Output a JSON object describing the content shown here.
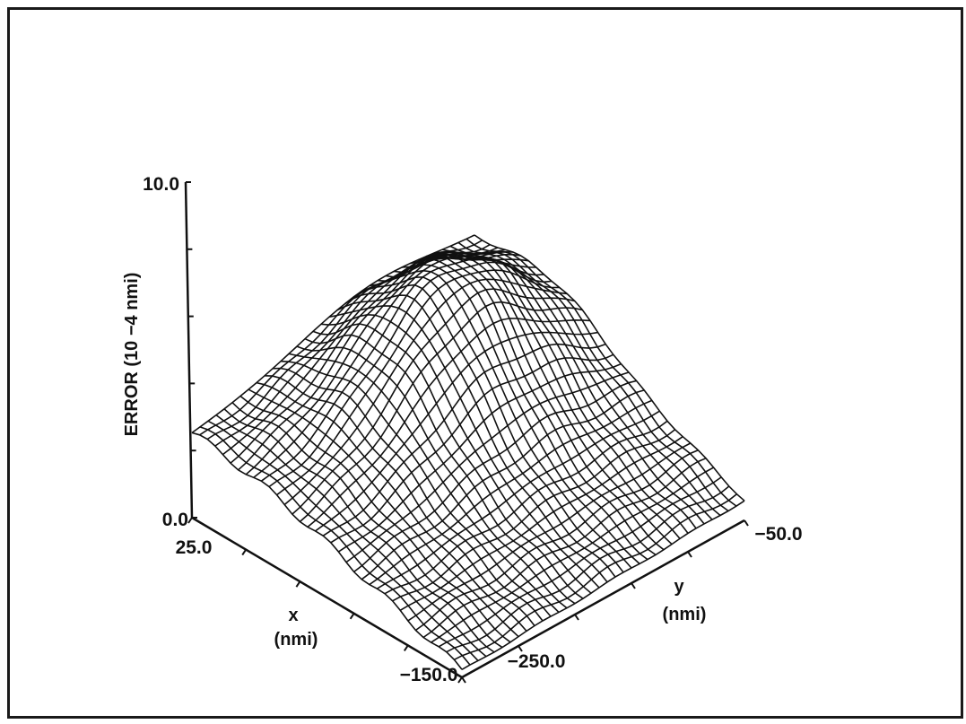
{
  "chart_data": {
    "type": "surface3d",
    "title": "",
    "z_axis": {
      "label": "ERROR (10 −4 nmi)",
      "min": 0.0,
      "max": 10.0,
      "tick_labels": [
        "0.0",
        "10.0"
      ]
    },
    "x_axis": {
      "label": "x",
      "unit": "(nmi)",
      "min": -150.0,
      "max": 25.0,
      "tick_labels": [
        "25.0",
        "−150.0"
      ]
    },
    "y_axis": {
      "label": "y",
      "unit": "(nmi)",
      "min": -250.0,
      "max": -50.0,
      "tick_labels": [
        "−250.0",
        "−50.0"
      ]
    },
    "grid": false,
    "surface": {
      "grid_size": [
        36,
        36
      ],
      "x_range": [
        -150.0,
        25.0
      ],
      "y_range": [
        -250.0,
        -50.0
      ],
      "description_points": [
        {
          "x": 25.0,
          "y": -250.0,
          "error": 2.5
        },
        {
          "x": 25.0,
          "y": -50.0,
          "error": 2.9
        },
        {
          "x": -150.0,
          "y": -250.0,
          "error": 0.2
        },
        {
          "x": -150.0,
          "y": -50.0,
          "error": 0.6
        },
        {
          "x": -40.0,
          "y": -110.0,
          "error": 5.0
        }
      ]
    },
    "colors": {
      "mesh": "#111111",
      "background": "#ffffff"
    }
  }
}
